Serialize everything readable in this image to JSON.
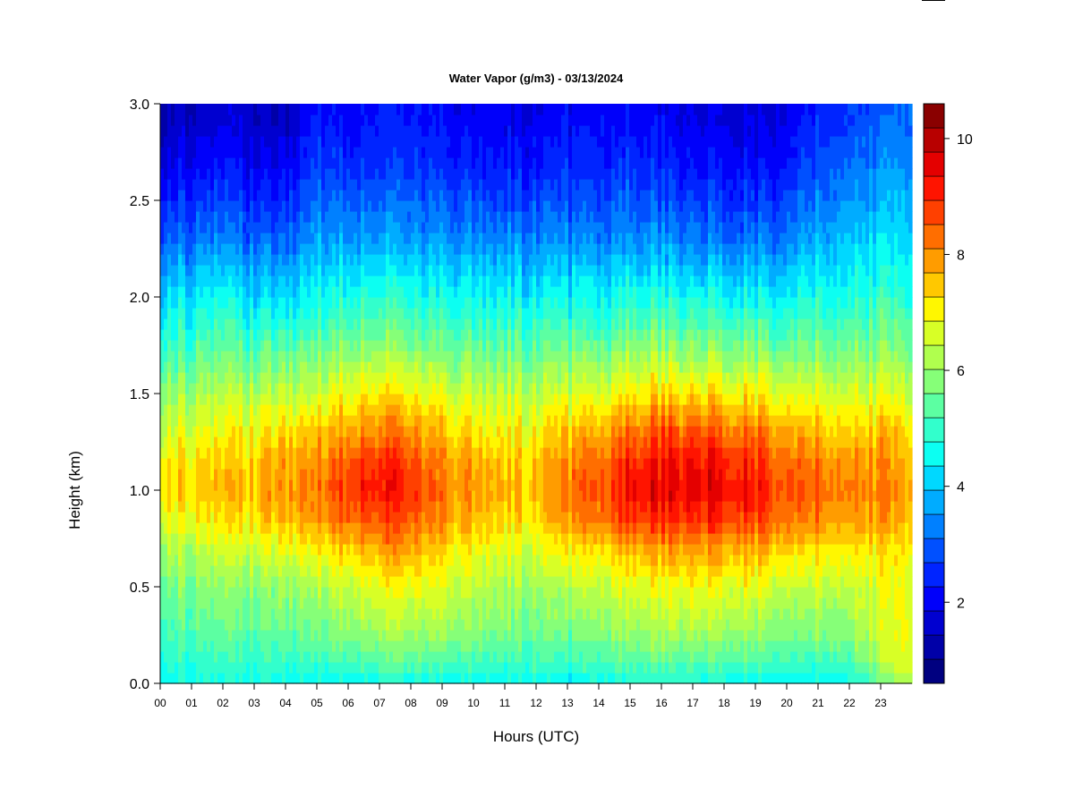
{
  "chart_data": {
    "type": "heatmap",
    "title": "Water Vapor (g/m3) - 03/13/2024",
    "xlabel": "Hours (UTC)",
    "ylabel": "Height (km)",
    "x_ticks": [
      "00",
      "01",
      "02",
      "03",
      "04",
      "05",
      "06",
      "07",
      "08",
      "09",
      "10",
      "11",
      "12",
      "13",
      "14",
      "15",
      "16",
      "17",
      "18",
      "19",
      "20",
      "21",
      "22",
      "23"
    ],
    "x_range": [
      0,
      24
    ],
    "y_ticks": [
      "0.0",
      "0.5",
      "1.0",
      "1.5",
      "2.0",
      "2.5",
      "3.0"
    ],
    "y_range": [
      0,
      3
    ],
    "colorbar": {
      "range": [
        0.6,
        10.6
      ],
      "ticks": [
        "2",
        "4",
        "6",
        "8",
        "10"
      ],
      "colors": [
        "#000080",
        "#0000A8",
        "#0000D0",
        "#0000FA",
        "#0024FF",
        "#0050FF",
        "#0080FF",
        "#00ACFF",
        "#00D8FF",
        "#0CFFF2",
        "#32FFCC",
        "#5CFFA2",
        "#86FF78",
        "#B0FF4E",
        "#D8FF26",
        "#FFF700",
        "#FFC800",
        "#FF9C00",
        "#FF6E00",
        "#FF4000",
        "#FF1400",
        "#E40000",
        "#B80000",
        "#8A0000"
      ]
    },
    "profiles": {
      "heights": [
        0.0,
        0.1,
        0.25,
        0.5,
        0.7,
        0.85,
        1.0,
        1.15,
        1.3,
        1.5,
        1.7,
        1.9,
        2.1,
        2.3,
        2.5,
        2.7,
        2.9,
        3.0
      ],
      "hours": [
        0,
        2,
        4,
        5,
        6,
        7.5,
        9,
        11,
        12,
        13,
        14,
        15.5,
        17,
        18.5,
        19.5,
        20.5,
        22,
        23.8
      ],
      "values": [
        [
          4.6,
          4.9,
          5.2,
          5.7,
          6.2,
          6.9,
          7.4,
          7.2,
          6.7,
          6.1,
          5.3,
          4.6,
          3.9,
          3.1,
          2.5,
          1.9,
          1.5,
          1.4
        ],
        [
          4.6,
          4.9,
          5.3,
          5.8,
          6.4,
          7.0,
          7.4,
          7.2,
          6.8,
          6.1,
          5.4,
          4.7,
          4.0,
          3.2,
          2.6,
          2.1,
          1.7,
          1.6
        ],
        [
          4.6,
          5.0,
          5.4,
          6.0,
          6.8,
          7.6,
          8.0,
          7.8,
          7.3,
          6.4,
          5.5,
          4.6,
          3.8,
          3.0,
          2.4,
          1.9,
          1.5,
          1.4
        ],
        [
          4.5,
          5.0,
          5.6,
          6.2,
          7.1,
          8.0,
          8.3,
          8.0,
          7.5,
          6.6,
          5.8,
          5.0,
          4.3,
          3.7,
          3.2,
          2.7,
          2.4,
          2.3
        ],
        [
          4.4,
          5.1,
          5.8,
          6.5,
          7.5,
          8.4,
          8.9,
          8.6,
          7.9,
          7.0,
          6.0,
          5.1,
          4.4,
          3.6,
          3.0,
          2.5,
          2.2,
          2.1
        ],
        [
          4.6,
          5.3,
          6.1,
          6.9,
          7.9,
          8.6,
          9.2,
          8.9,
          8.2,
          7.1,
          6.1,
          5.2,
          4.4,
          3.6,
          3.1,
          2.6,
          2.3,
          2.2
        ],
        [
          4.5,
          5.2,
          6.0,
          6.7,
          7.4,
          8.1,
          8.3,
          8.1,
          7.6,
          6.8,
          5.8,
          5.0,
          4.3,
          3.6,
          3.0,
          2.5,
          2.2,
          2.1
        ],
        [
          4.5,
          5.0,
          5.6,
          6.2,
          6.7,
          7.3,
          7.6,
          7.4,
          7.0,
          6.4,
          5.6,
          4.9,
          4.2,
          3.4,
          2.8,
          2.3,
          2.0,
          1.9
        ],
        [
          4.6,
          5.0,
          5.5,
          6.0,
          6.6,
          7.2,
          7.5,
          7.3,
          6.9,
          6.3,
          5.5,
          4.8,
          4.0,
          3.3,
          2.7,
          2.2,
          1.9,
          1.8
        ],
        [
          4.3,
          4.9,
          5.5,
          6.1,
          7.0,
          7.8,
          8.1,
          7.9,
          7.4,
          6.5,
          5.6,
          4.8,
          4.1,
          3.3,
          2.8,
          2.4,
          2.1,
          2.0
        ],
        [
          4.6,
          5.2,
          5.8,
          6.5,
          7.4,
          8.3,
          8.7,
          8.4,
          7.8,
          6.8,
          5.8,
          4.9,
          4.2,
          3.4,
          2.9,
          2.5,
          2.2,
          2.1
        ],
        [
          4.7,
          5.3,
          6.0,
          6.8,
          7.8,
          8.9,
          9.4,
          9.1,
          8.4,
          7.2,
          6.1,
          5.1,
          4.3,
          3.5,
          2.9,
          2.4,
          2.1,
          2.0
        ],
        [
          4.7,
          5.3,
          6.1,
          6.9,
          7.9,
          9.0,
          9.6,
          9.3,
          8.6,
          7.3,
          6.1,
          5.1,
          4.2,
          3.3,
          2.7,
          2.2,
          1.9,
          1.8
        ],
        [
          4.6,
          5.2,
          6.0,
          6.8,
          7.8,
          8.8,
          9.3,
          9.0,
          8.3,
          7.1,
          6.0,
          5.0,
          4.1,
          3.2,
          2.6,
          2.1,
          1.8,
          1.7
        ],
        [
          4.5,
          5.1,
          5.8,
          6.6,
          7.6,
          8.5,
          8.9,
          8.6,
          8.0,
          6.9,
          5.9,
          4.9,
          4.0,
          3.2,
          2.6,
          2.1,
          1.8,
          1.7
        ],
        [
          4.4,
          5.0,
          5.7,
          6.4,
          7.3,
          8.1,
          8.5,
          8.3,
          7.7,
          6.7,
          5.8,
          5.0,
          4.3,
          3.6,
          3.1,
          2.6,
          2.3,
          2.2
        ],
        [
          4.6,
          5.2,
          5.9,
          6.5,
          7.3,
          8.0,
          8.3,
          8.1,
          7.6,
          6.7,
          5.9,
          5.2,
          4.6,
          4.1,
          3.6,
          3.2,
          2.8,
          2.7
        ],
        [
          6.2,
          6.8,
          7.0,
          6.9,
          7.2,
          7.7,
          8.0,
          7.8,
          7.4,
          6.6,
          5.9,
          5.3,
          4.7,
          4.3,
          3.9,
          3.5,
          3.2,
          3.1
        ]
      ]
    }
  }
}
